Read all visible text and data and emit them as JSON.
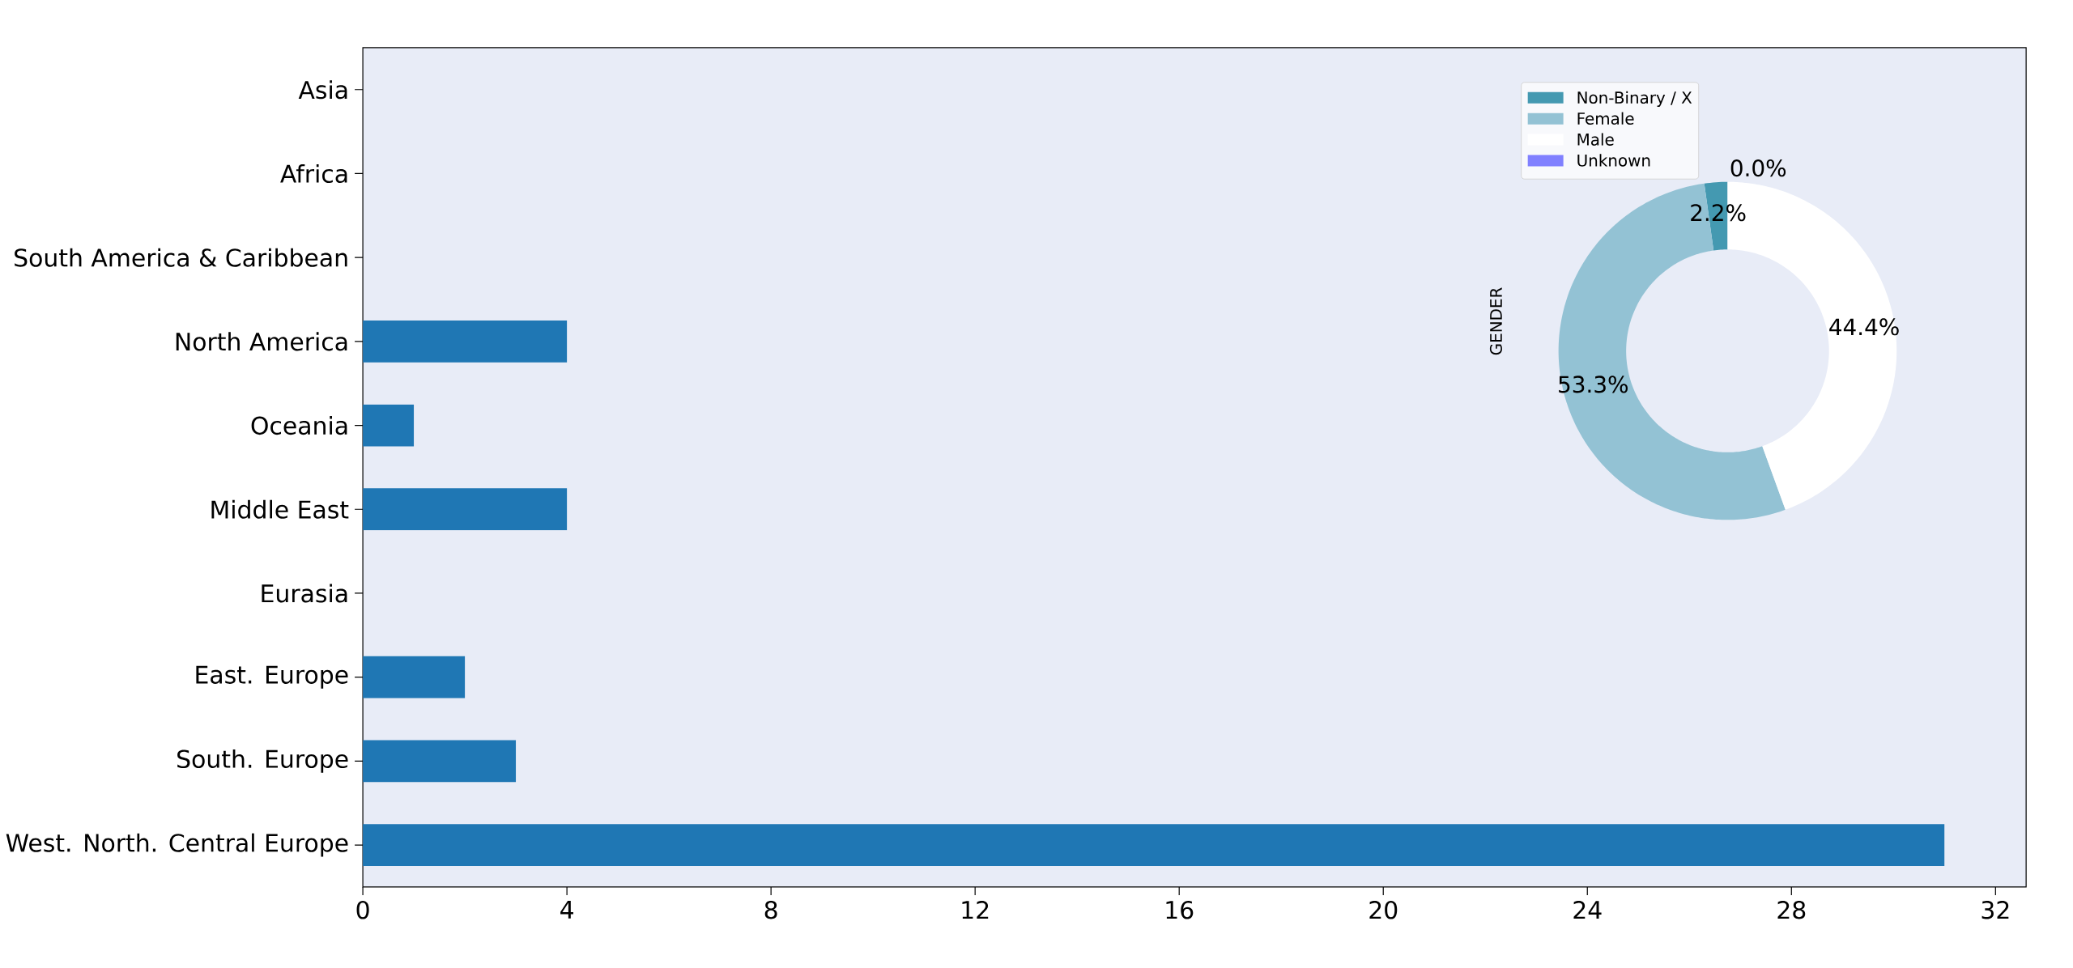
{
  "chart_data": [
    {
      "type": "bar",
      "orientation": "horizontal",
      "categories": [
        "Asia",
        "Africa",
        "South America & Caribbean",
        "North America",
        "Oceania",
        "Middle East",
        "Eurasia",
        "East. Europe",
        "South. Europe",
        "West. North. Central Europe"
      ],
      "values": [
        0,
        0,
        0,
        4,
        1,
        4,
        0,
        2,
        3,
        31
      ],
      "color": "#1f77b4",
      "xlim": [
        0,
        32.6
      ],
      "xticks": [
        0,
        4,
        8,
        12,
        16,
        20,
        24,
        28,
        32
      ]
    },
    {
      "type": "donut",
      "ylabel": "GENDER",
      "categories": [
        "Non-Binary / X",
        "Female",
        "Male",
        "Unknown"
      ],
      "values": [
        2.2,
        53.3,
        44.4,
        0.0
      ],
      "colors": [
        "#4499b1",
        "#93c2d4",
        "#ffffff",
        "#8080ff"
      ],
      "value_labels": [
        "2.2%",
        "53.3%",
        "44.4%",
        "0.0%"
      ],
      "legend": "top left"
    }
  ]
}
